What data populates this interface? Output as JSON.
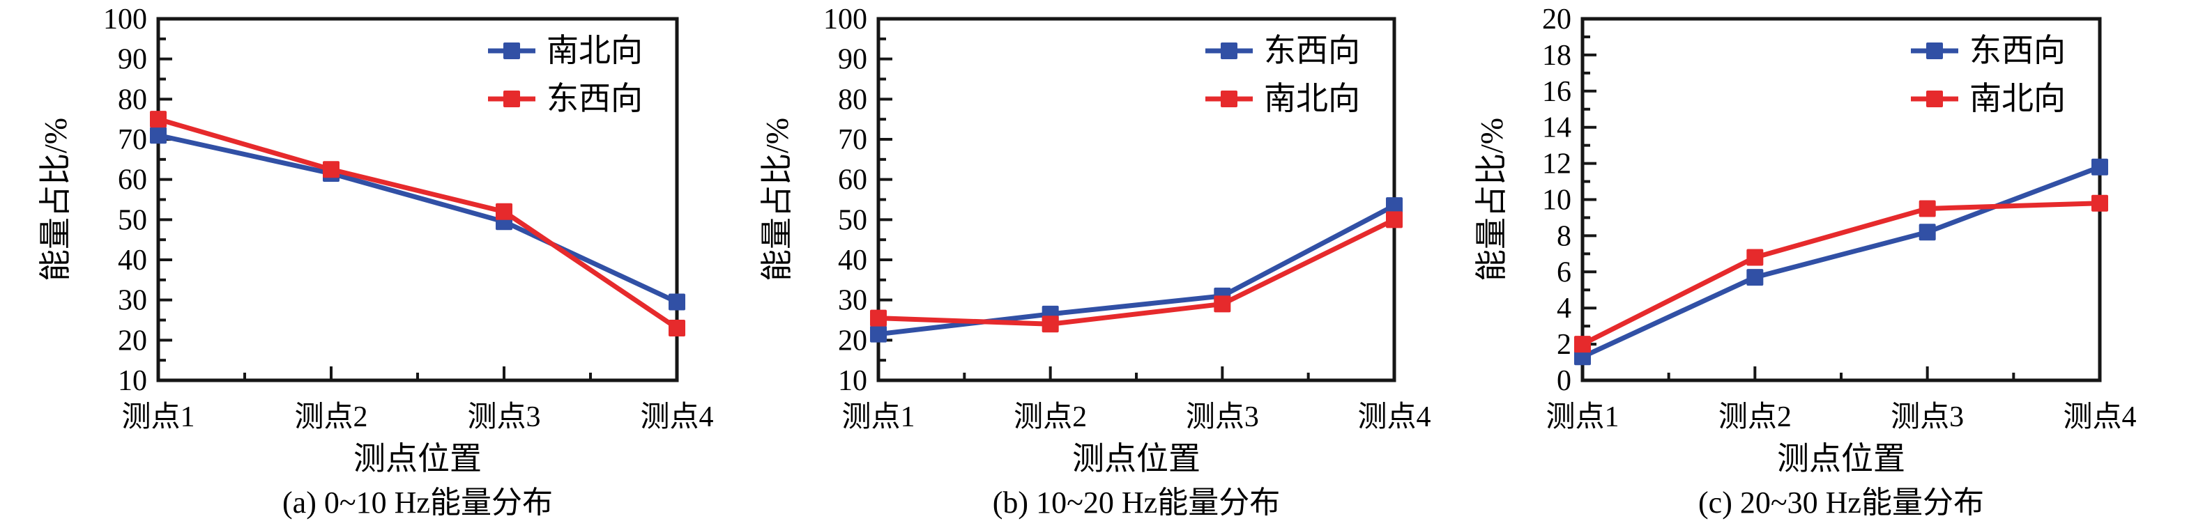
{
  "colors": {
    "series_blue": "#3150A5",
    "series_red": "#E62A2C",
    "axis": "#161616",
    "text": "#000000",
    "background": "#FFFFFF"
  },
  "chart_data": [
    {
      "type": "line",
      "caption": "(a) 0~10 Hz能量分布",
      "xlabel": "测点位置",
      "ylabel": "能量占比/%",
      "categories": [
        "测点1",
        "测点2",
        "测点3",
        "测点4"
      ],
      "ylim": [
        10,
        100
      ],
      "ytick_step": 10,
      "yminor_step": 5,
      "grid": false,
      "legend_position": "top-right",
      "marker": "square",
      "series": [
        {
          "name": "南北向",
          "color": "#3150A5",
          "values": [
            71,
            61.5,
            49.5,
            29.5
          ]
        },
        {
          "name": "东西向",
          "color": "#E62A2C",
          "values": [
            75,
            62.5,
            52,
            23
          ]
        }
      ]
    },
    {
      "type": "line",
      "caption": "(b) 10~20 Hz能量分布",
      "xlabel": "测点位置",
      "ylabel": "能量占比/%",
      "categories": [
        "测点1",
        "测点2",
        "测点3",
        "测点4"
      ],
      "ylim": [
        10,
        100
      ],
      "ytick_step": 10,
      "yminor_step": 5,
      "grid": false,
      "legend_position": "top-right",
      "marker": "square",
      "series": [
        {
          "name": "东西向",
          "color": "#3150A5",
          "values": [
            21.5,
            26.5,
            31,
            53.5
          ]
        },
        {
          "name": "南北向",
          "color": "#E62A2C",
          "values": [
            25.5,
            24,
            29,
            50
          ]
        }
      ]
    },
    {
      "type": "line",
      "caption": "(c) 20~30 Hz能量分布",
      "xlabel": "测点位置",
      "ylabel": "能量占比/%",
      "categories": [
        "测点1",
        "测点2",
        "测点3",
        "测点4"
      ],
      "ylim": [
        0,
        20
      ],
      "ytick_step": 2,
      "yminor_step": 1,
      "grid": false,
      "legend_position": "top-right",
      "marker": "square",
      "series": [
        {
          "name": "东西向",
          "color": "#3150A5",
          "values": [
            1.3,
            5.7,
            8.2,
            11.8
          ]
        },
        {
          "name": "南北向",
          "color": "#E62A2C",
          "values": [
            2,
            6.8,
            9.5,
            9.8
          ]
        }
      ]
    }
  ]
}
